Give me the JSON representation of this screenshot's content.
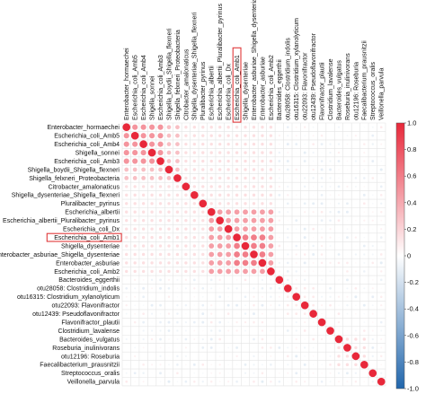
{
  "chart_data": {
    "type": "heatmap",
    "subtype": "correlation-circles-lower-upper-full",
    "labels": [
      "Enterobacter_hormaechei",
      "Escherichia_coli_Amb5",
      "Escherichia_coli_Amb4",
      "Shigella_sonnei",
      "Escherichia_coli_Amb3",
      "Shigella_boydii_Shigella_flexneri",
      "Shigella_felxneri_Proteobacteria",
      "Citrobacter_amalonaticus",
      "Shigella_dysenteriae_Shigella_flexneri",
      "Pluralibacter_pyrinus",
      "Escherichia_albertii",
      "Escherichia_albertii_Pluralibacter_pyrinus",
      "Escherichia_coli_Dx",
      "Escherichia_coli_Amb1",
      "Shigella_dysenteriae",
      "Enterobacter_asburiae_Shigella_dysenteriae",
      "Enterobacter_asburiae",
      "Escherichia_coli_Amb2",
      "Bacteroides_eggerthii",
      "otu28058: Clostridium_indolis",
      "otu16315: Clostridium_xylanolyticum",
      "otu22093: Flavonifractor",
      "otu12439: Pseudoflavonifractor",
      "Flavonifractor_plautii",
      "Clostridium_lavalense",
      "Bacteroides_vulgatus",
      "Roseburia_inulinivorans",
      "otu12196: Roseburia",
      "Faecalibacterium_prausnitzii",
      "Streptococcus_oralis",
      "Veillonella_parvula"
    ],
    "highlighted_label": "Escherichia_coli_Amb1",
    "blocks": [
      {
        "members": [
          0,
          1,
          2,
          3,
          4
        ],
        "corr": 0.5
      },
      {
        "members": [
          0,
          1,
          2,
          3,
          4,
          5,
          6
        ],
        "corr": 0.3
      },
      {
        "members": [
          10,
          11,
          12,
          13,
          14,
          15,
          16,
          17
        ],
        "corr": 0.45
      },
      {
        "members": [
          13,
          14,
          15,
          16
        ],
        "corr": 0.6
      },
      {
        "members": [
          0,
          1,
          2,
          3,
          4,
          5,
          6,
          7,
          8,
          9,
          10,
          11,
          12,
          13,
          14,
          15,
          16,
          17
        ],
        "corr": 0.15
      },
      {
        "members": [
          19,
          20,
          21,
          22
        ],
        "corr": 0.1
      },
      {
        "members": [
          25,
          26,
          27,
          28
        ],
        "corr": 0.15
      }
    ],
    "diagonal": 1.0,
    "colorbar": {
      "ticks": [
        "1.0",
        "0.8",
        "0.6",
        "0.4",
        "0.2",
        "0",
        "-0.2",
        "-0.4",
        "-0.6",
        "-0.8",
        "-1.0"
      ],
      "min": -1,
      "max": 1
    },
    "colors": {
      "positive": "#e8283a",
      "negative": "#2166ac",
      "neutral": "#ffffff",
      "grid": "#e4e4e4",
      "highlight": "#e0383a"
    },
    "grid": true
  }
}
